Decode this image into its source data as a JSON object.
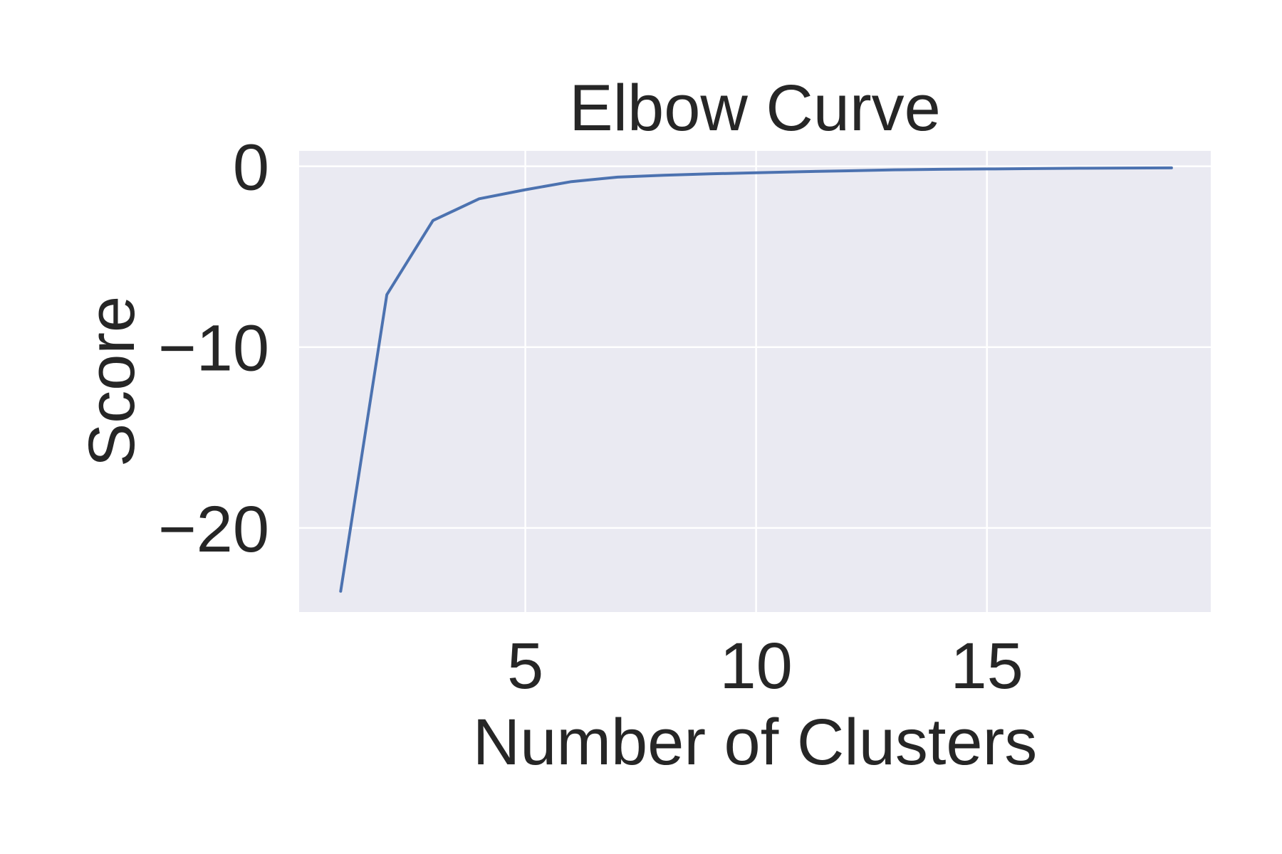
{
  "chart_data": {
    "type": "line",
    "title": "Elbow Curve",
    "xlabel": "Number of Clusters",
    "ylabel": "Score",
    "x": [
      1,
      2,
      3,
      4,
      5,
      6,
      7,
      8,
      9,
      10,
      11,
      12,
      13,
      14,
      15,
      16,
      17,
      18,
      19
    ],
    "values": [
      -23.5,
      -7.1,
      -3.0,
      -1.8,
      -1.3,
      -0.85,
      -0.6,
      -0.5,
      -0.42,
      -0.36,
      -0.3,
      -0.25,
      -0.2,
      -0.17,
      -0.15,
      -0.13,
      -0.11,
      -0.1,
      -0.09
    ],
    "xlim": [
      0.1,
      19.85
    ],
    "ylim": [
      -24.65,
      0.85
    ],
    "xticks": [
      5,
      10,
      15
    ],
    "yticks": [
      0,
      -10,
      -20
    ],
    "xtick_labels": [
      "5",
      "10",
      "15"
    ],
    "ytick_labels": [
      "0",
      "−10",
      "−20"
    ],
    "grid": true,
    "line_color": "#4c72b0",
    "plot_background": "#eaeaf2",
    "grid_color": "#ffffff"
  }
}
